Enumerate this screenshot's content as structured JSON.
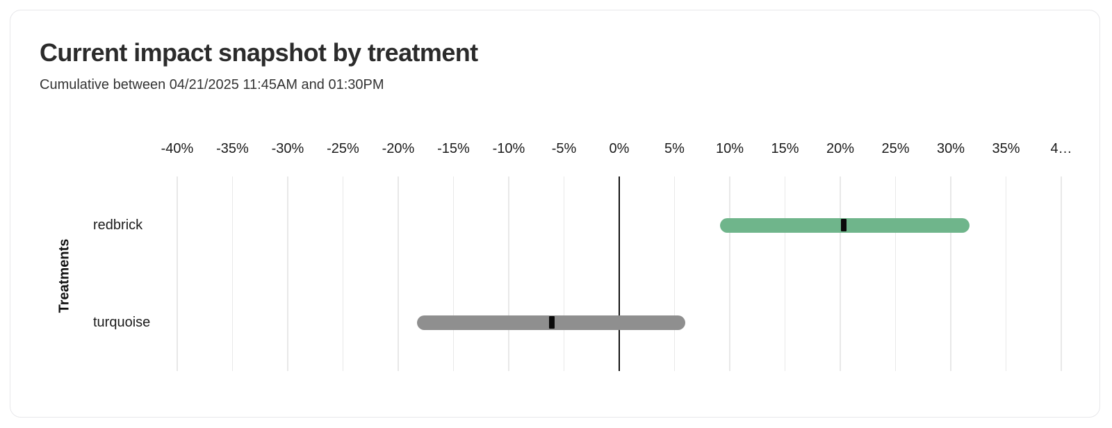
{
  "chart_data": {
    "type": "bar",
    "subtype": "horizontal-confidence-interval-bars",
    "title": "Current impact snapshot by treatment",
    "subtitle": "Cumulative between 04/21/2025 11:45AM and 01:30PM",
    "xlabel": "",
    "ylabel": "Treatments",
    "categories": [
      "redbrick",
      "turquoise"
    ],
    "series": [
      {
        "name": "redbrick",
        "low": 9.1,
        "mid": 20.3,
        "high": 31.7,
        "color": "#6FB58B"
      },
      {
        "name": "turquoise",
        "low": -18.3,
        "mid": -6.1,
        "high": 6.0,
        "color": "#8F8F8F"
      }
    ],
    "x_axis": {
      "min": -40,
      "max": 40,
      "step": 5,
      "unit": "%",
      "tick_labels": [
        "-40%",
        "-35%",
        "-30%",
        "-25%",
        "-20%",
        "-15%",
        "-10%",
        "-5%",
        "0%",
        "5%",
        "10%",
        "15%",
        "20%",
        "25%",
        "30%",
        "35%",
        "4…"
      ]
    },
    "grid": "vertical",
    "zero_line": true,
    "legend": "none",
    "marker_color": "#0a0a0a"
  },
  "colors": {
    "card_background": "#FFFFFF",
    "card_border": "#E7E7EA",
    "gridline": "#E8E8E8",
    "zero_line": "#111111",
    "title_text": "#2B2B2B",
    "subtitle_text": "#333333",
    "axis_text": "#1A1A1A"
  }
}
